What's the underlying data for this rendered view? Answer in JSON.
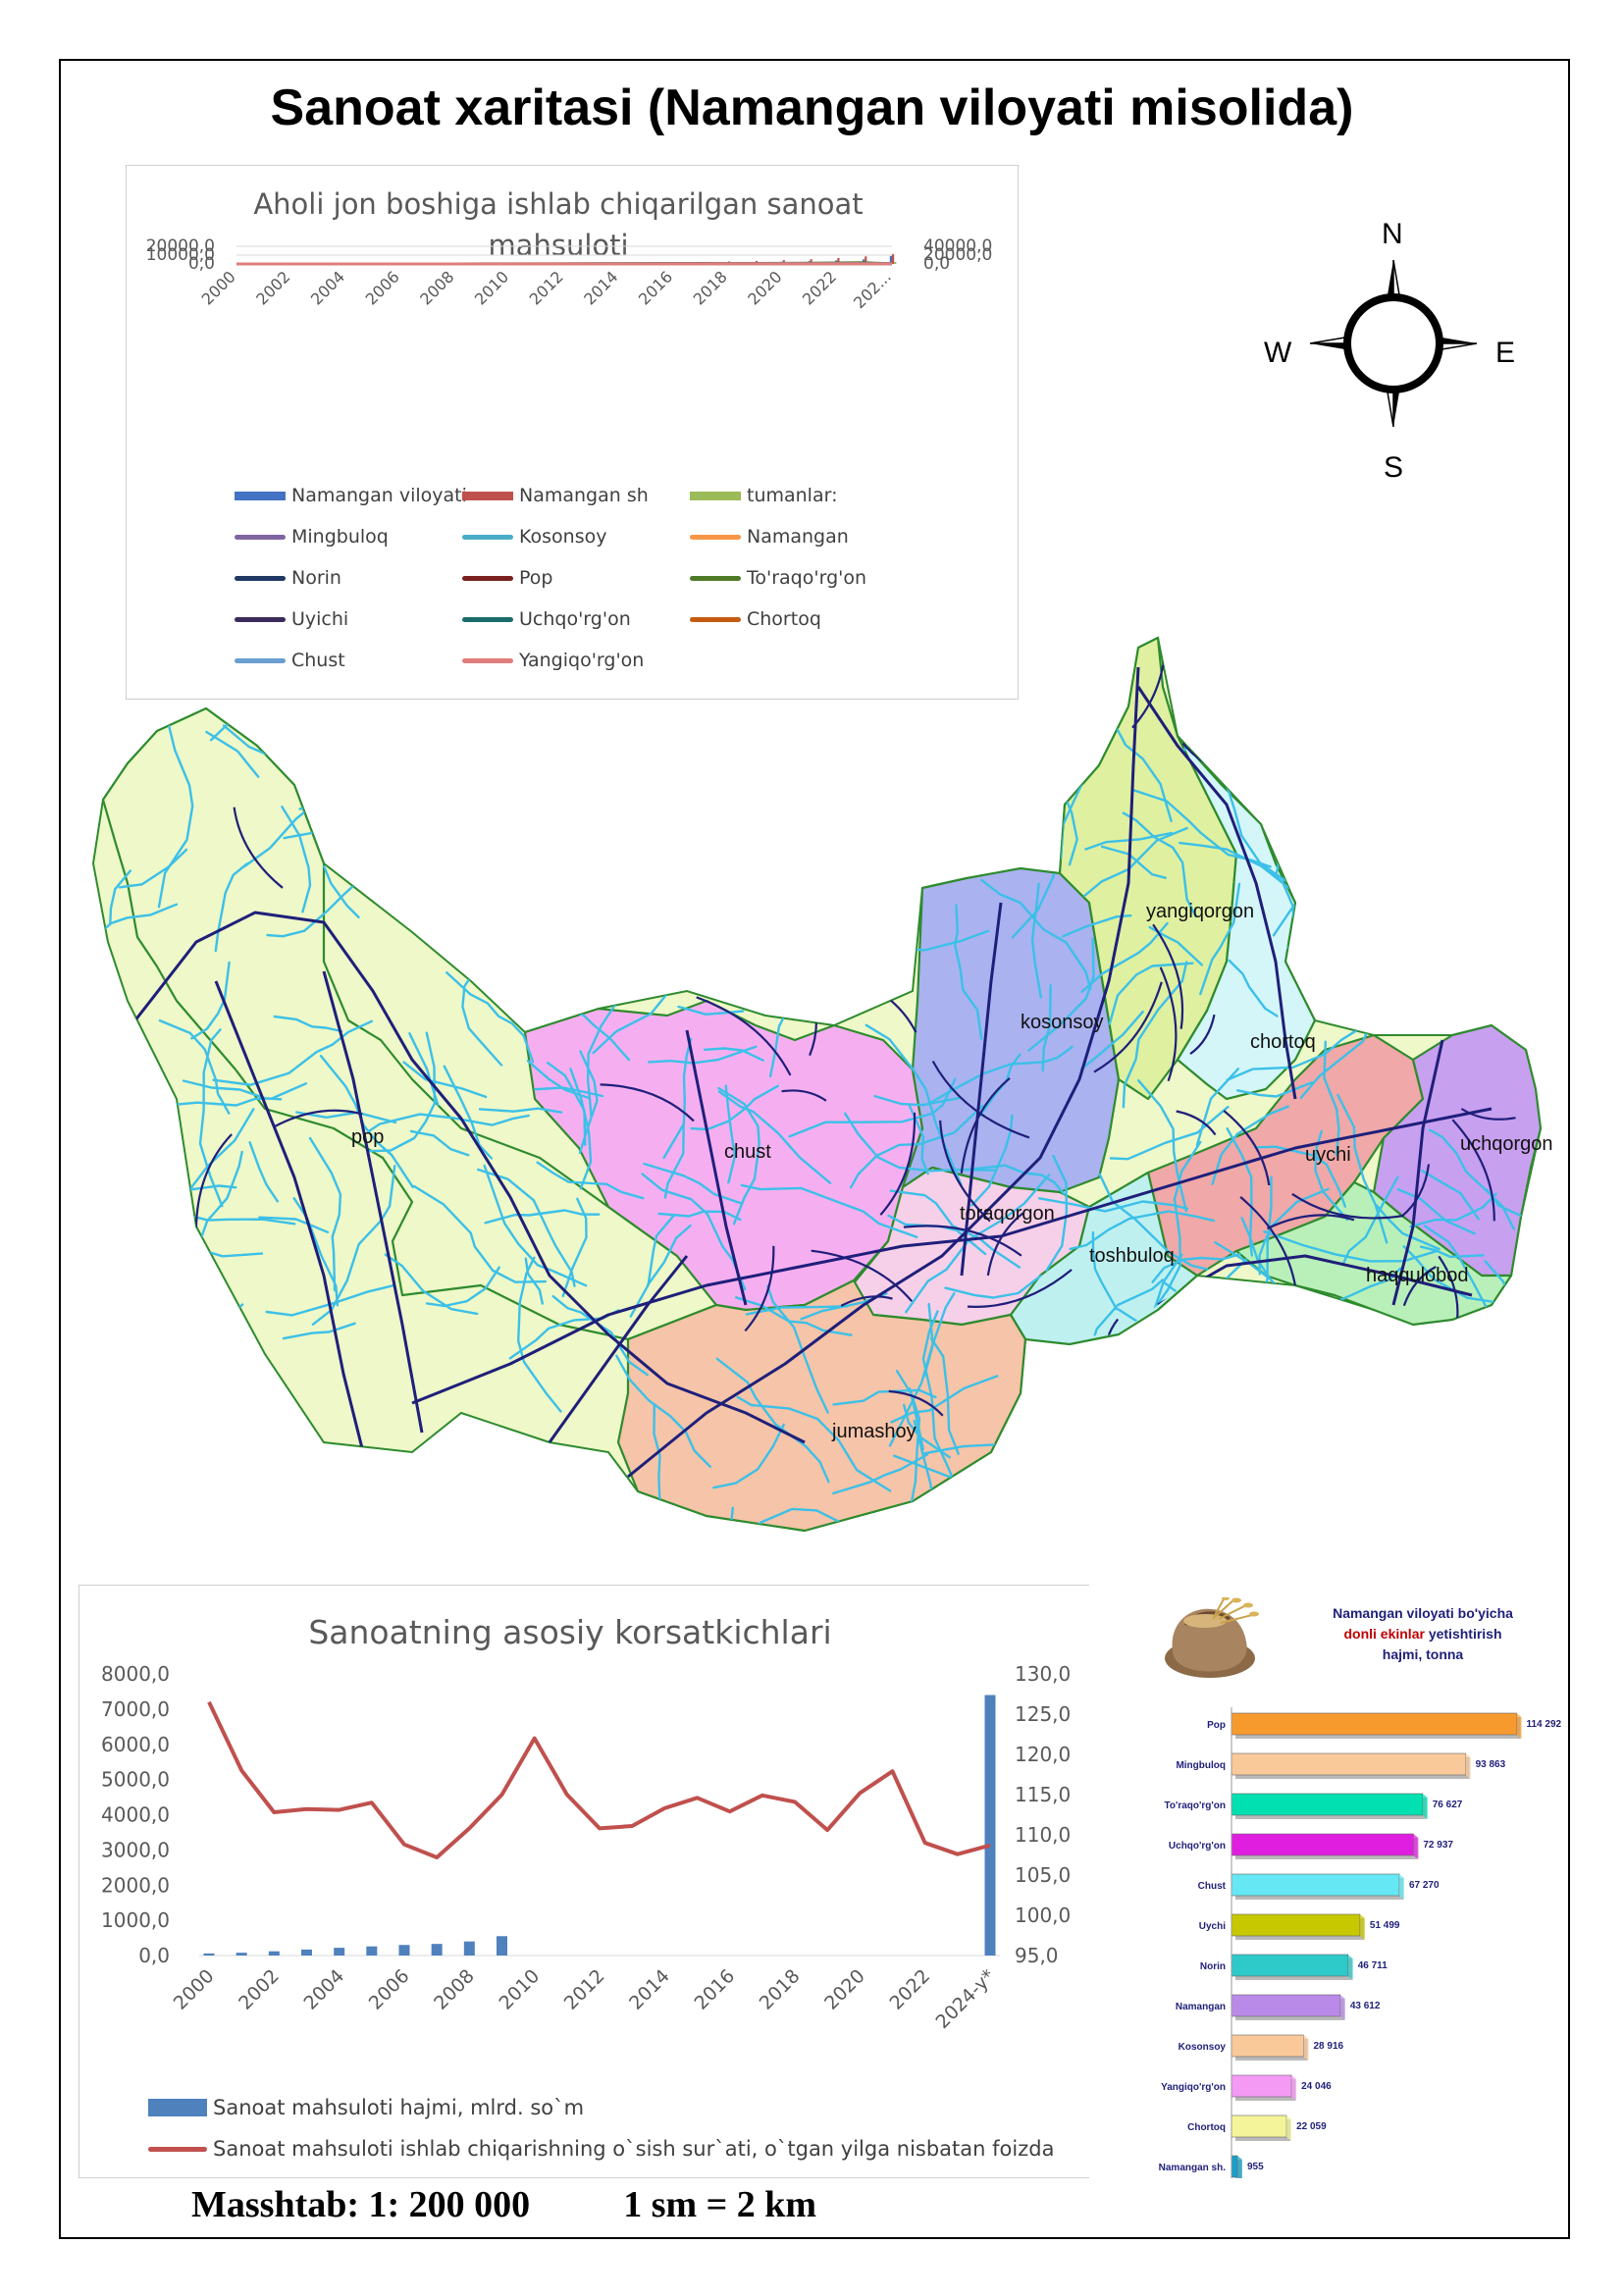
{
  "title": "Sanoat xaritasi (Namangan viloyati misolida)",
  "compass": {
    "n": "N",
    "s": "S",
    "e": "E",
    "w": "W"
  },
  "scale": {
    "ratio": "Masshtab: 1: 200 000",
    "equivalence": "1 sm = 2 km"
  },
  "districts": [
    {
      "name": "pop",
      "color": "#eef8c8"
    },
    {
      "name": "chust",
      "color": "#f5aff0"
    },
    {
      "name": "kosonsoy",
      "color": "#aab2f0"
    },
    {
      "name": "yangiqorgon",
      "color": "#dff0a0"
    },
    {
      "name": "chortoq",
      "color": "#d4f6f8"
    },
    {
      "name": "toraqorgon",
      "color": "#f6d0e8"
    },
    {
      "name": "uychi",
      "color": "#f0a8a8"
    },
    {
      "name": "uchqorgon",
      "color": "#c8a0f0"
    },
    {
      "name": "toshbuloq",
      "color": "#bff0f0"
    },
    {
      "name": "haqqulobod",
      "color": "#b9f0b9"
    },
    {
      "name": "jumashoy",
      "color": "#f6c4a8"
    }
  ],
  "colors": {
    "rivers": "#3cc0e8",
    "roads": "#1f1f7a",
    "borders": "#2e8b2e"
  },
  "chart_top": {
    "chart_data": {
      "type": "line",
      "title": "Aholi jon boshiga ishlab chiqarilgan sanoat mahsuloti",
      "x_tick_labels": [
        "2000",
        "2002",
        "2004",
        "2006",
        "2008",
        "2010",
        "2012",
        "2014",
        "2016",
        "2018",
        "2020",
        "2022",
        "202..."
      ],
      "y_left_ticks": [
        "20000,0",
        "10000,0",
        "0,0"
      ],
      "y_right_ticks": [
        "40000,0",
        "20000,0",
        "0,0"
      ],
      "y_left_lim": [
        0,
        20000
      ],
      "y_right_lim": [
        0,
        40000
      ],
      "x": [
        2000,
        2001,
        2002,
        2003,
        2004,
        2005,
        2006,
        2007,
        2008,
        2009,
        2010,
        2011,
        2012,
        2013,
        2014,
        2015,
        2016,
        2017,
        2018,
        2019,
        2020,
        2021,
        2022,
        2023,
        2024
      ],
      "series": [
        {
          "name": "Namangan viloyati",
          "color": "#4472c4",
          "kind": "bar",
          "values": [
            50,
            60,
            80,
            100,
            120,
            150,
            180,
            220,
            260,
            320,
            400,
            500,
            600,
            700,
            800,
            950,
            1100,
            1300,
            1600,
            2000,
            2500,
            3100,
            4000,
            5200,
            9000
          ]
        },
        {
          "name": "Namangan sh",
          "color": "#c0504d",
          "kind": "bar",
          "values": [
            80,
            100,
            130,
            170,
            210,
            260,
            320,
            390,
            470,
            560,
            700,
            850,
            1000,
            1200,
            1400,
            1650,
            1900,
            2300,
            2800,
            3400,
            4300,
            5300,
            6800,
            8500,
            11000
          ]
        },
        {
          "name": "tumanlar:",
          "color": "#9bbb59",
          "kind": "bar",
          "values": [
            10,
            15,
            20,
            25,
            30,
            40,
            50,
            60,
            70,
            90,
            110,
            140,
            170,
            200,
            240,
            280,
            330,
            400,
            480,
            600,
            750,
            950,
            1200,
            1600,
            2200
          ]
        },
        {
          "name": "Mingbuloq",
          "color": "#8064a2",
          "kind": "line",
          "values": [
            10,
            12,
            14,
            16,
            20,
            24,
            30,
            36,
            44,
            54,
            66,
            80,
            96,
            115,
            135,
            160,
            190,
            230,
            280,
            340,
            420,
            520,
            650,
            800,
            400
          ]
        },
        {
          "name": "Kosonsoy",
          "color": "#4bacc6",
          "kind": "line",
          "values": [
            12,
            14,
            16,
            20,
            24,
            30,
            36,
            44,
            54,
            66,
            80,
            96,
            115,
            135,
            160,
            190,
            230,
            280,
            340,
            420,
            520,
            650,
            800,
            1000,
            500
          ]
        },
        {
          "name": "Namangan",
          "color": "#f79646",
          "kind": "line",
          "values": [
            15,
            18,
            22,
            26,
            32,
            38,
            46,
            56,
            68,
            82,
            100,
            120,
            145,
            175,
            210,
            250,
            300,
            360,
            440,
            540,
            660,
            820,
            1000,
            1250,
            600
          ]
        },
        {
          "name": "Norin",
          "color": "#1f3864",
          "kind": "line",
          "values": [
            8,
            10,
            12,
            14,
            17,
            20,
            24,
            29,
            35,
            42,
            51,
            62,
            75,
            90,
            108,
            130,
            156,
            188,
            226,
            272,
            328,
            395,
            476,
            573,
            300
          ]
        },
        {
          "name": "Pop",
          "color": "#7b1f1f",
          "kind": "line",
          "values": [
            9,
            11,
            13,
            15,
            18,
            22,
            26,
            31,
            38,
            46,
            55,
            67,
            81,
            97,
            117,
            140,
            168,
            202,
            243,
            292,
            351,
            422,
            507,
            610,
            320
          ]
        },
        {
          "name": "To'raqo'rg'on",
          "color": "#4f7a28",
          "kind": "line",
          "values": [
            20,
            24,
            30,
            36,
            44,
            54,
            66,
            80,
            100,
            120,
            150,
            180,
            220,
            270,
            330,
            400,
            500,
            620,
            780,
            1000,
            1300,
            1700,
            2200,
            2600,
            400
          ]
        },
        {
          "name": "Uyichi",
          "color": "#3b2b5a",
          "kind": "line",
          "values": [
            7,
            8,
            10,
            12,
            14,
            17,
            20,
            24,
            29,
            35,
            42,
            51,
            61,
            73,
            88,
            106,
            127,
            152,
            183,
            220,
            264,
            317,
            380,
            456,
            240
          ]
        },
        {
          "name": "Uchqo'rg'on",
          "color": "#1b6b6b",
          "kind": "line",
          "values": [
            11,
            13,
            15,
            18,
            22,
            26,
            31,
            37,
            45,
            54,
            65,
            78,
            94,
            113,
            135,
            162,
            195,
            234,
            281,
            337,
            404,
            485,
            582,
            698,
            360
          ]
        },
        {
          "name": "Chortoq",
          "color": "#c55a11",
          "kind": "line",
          "values": [
            6,
            7,
            9,
            11,
            13,
            15,
            18,
            22,
            26,
            31,
            38,
            45,
            54,
            65,
            78,
            94,
            113,
            135,
            162,
            195,
            234,
            281,
            337,
            404,
            210
          ]
        },
        {
          "name": "Chust",
          "color": "#6a9fd0",
          "kind": "line",
          "values": [
            9,
            11,
            13,
            16,
            19,
            23,
            27,
            33,
            40,
            48,
            57,
            69,
            83,
            99,
            119,
            143,
            171,
            206,
            247,
            296,
            355,
            426,
            511,
            614,
            310
          ]
        },
        {
          "name": "Yangiqo'rg'on",
          "color": "#e07d7d",
          "kind": "line",
          "values": [
            5,
            6,
            7,
            9,
            10,
            12,
            15,
            18,
            21,
            25,
            30,
            36,
            44,
            52,
            63,
            75,
            90,
            108,
            130,
            156,
            187,
            224,
            269,
            323,
            170
          ]
        }
      ]
    }
  },
  "chart_bottom": {
    "chart_data": {
      "type": "bar+line",
      "title": "Sanoatning asosiy korsatkichlari",
      "x_tick_labels": [
        "2000",
        "2002",
        "2004",
        "2006",
        "2008",
        "2010",
        "2012",
        "2014",
        "2016",
        "2018",
        "2020",
        "2022",
        "2024-y*"
      ],
      "y_left_ticks": [
        "8000,0",
        "7000,0",
        "6000,0",
        "5000,0",
        "4000,0",
        "3000,0",
        "2000,0",
        "1000,0",
        "0,0"
      ],
      "y_right_ticks": [
        "130,0",
        "125,0",
        "120,0",
        "115,0",
        "110,0",
        "105,0",
        "100,0",
        "95,0"
      ],
      "y_left_lim": [
        0,
        8000
      ],
      "y_right_lim": [
        95,
        130
      ],
      "x": [
        "2000",
        "2001",
        "2002",
        "2003",
        "2004",
        "2005",
        "2006",
        "2007",
        "2008",
        "2009",
        "2010",
        "2011",
        "2012",
        "2013",
        "2014",
        "2015",
        "2016",
        "2017",
        "2018",
        "2019",
        "2020",
        "2021",
        "2022",
        "2023",
        "2024-y*"
      ],
      "series": [
        {
          "name": "Sanoat mahsuloti hajmi, mlrd. so`m",
          "kind": "bar",
          "color": "#4f81bd",
          "values": [
            60,
            80,
            120,
            170,
            220,
            260,
            300,
            330,
            400,
            550,
            null,
            null,
            null,
            null,
            null,
            null,
            null,
            null,
            null,
            null,
            null,
            null,
            null,
            null,
            7400
          ]
        },
        {
          "name": "Sanoat mahsuloti ishlab chiqarishning o`sish sur`ati, o`tgan yilga nisbatan foizda",
          "kind": "line",
          "color": "#c0504d",
          "values": [
            126.5,
            118.0,
            112.8,
            113.2,
            113.1,
            114.0,
            108.8,
            107.2,
            110.8,
            115.0,
            122.0,
            115.0,
            110.8,
            111.1,
            113.3,
            114.6,
            112.9,
            114.9,
            114.1,
            110.6,
            115.2,
            117.9,
            109.0,
            107.6,
            108.7
          ]
        }
      ]
    }
  },
  "grain": {
    "title_line1": "Namangan viloyati bo'yicha",
    "title_line2_red": "donli ekinlar",
    "title_line2_rest": " yetishtirish",
    "title_line3": "hajmi, tonna",
    "chart_data": {
      "type": "bar",
      "orientation": "horizontal",
      "title": "Namangan viloyati bo'yicha donli ekinlar yetishtirish hajmi, tonna",
      "categories": [
        "Pop",
        "Mingbuloq",
        "To'raqo'rg'on",
        "Uchqo'rg'on",
        "Chust",
        "Uychi",
        "Norin",
        "Namangan",
        "Kosonsoy",
        "Yangiqo'rg'on",
        "Chortoq",
        "Namangan sh."
      ],
      "values": [
        114292,
        93863,
        76627,
        72937,
        67270,
        51499,
        46711,
        43612,
        28916,
        24046,
        22059,
        955
      ],
      "value_labels": [
        "114 292",
        "93 863",
        "76 627",
        "72 937",
        "67 270",
        "51 499",
        "46 711",
        "43 612",
        "28 916",
        "24 046",
        "22 059",
        "955"
      ],
      "colors": [
        "#f79a2e",
        "#f9c99a",
        "#00e0b0",
        "#e01ee0",
        "#66e8f4",
        "#c8c800",
        "#2ec9c9",
        "#b98ae8",
        "#f9c99a",
        "#f49af4",
        "#f4f49a",
        "#1aa0c8"
      ],
      "xlim": [
        0,
        120000
      ]
    }
  }
}
